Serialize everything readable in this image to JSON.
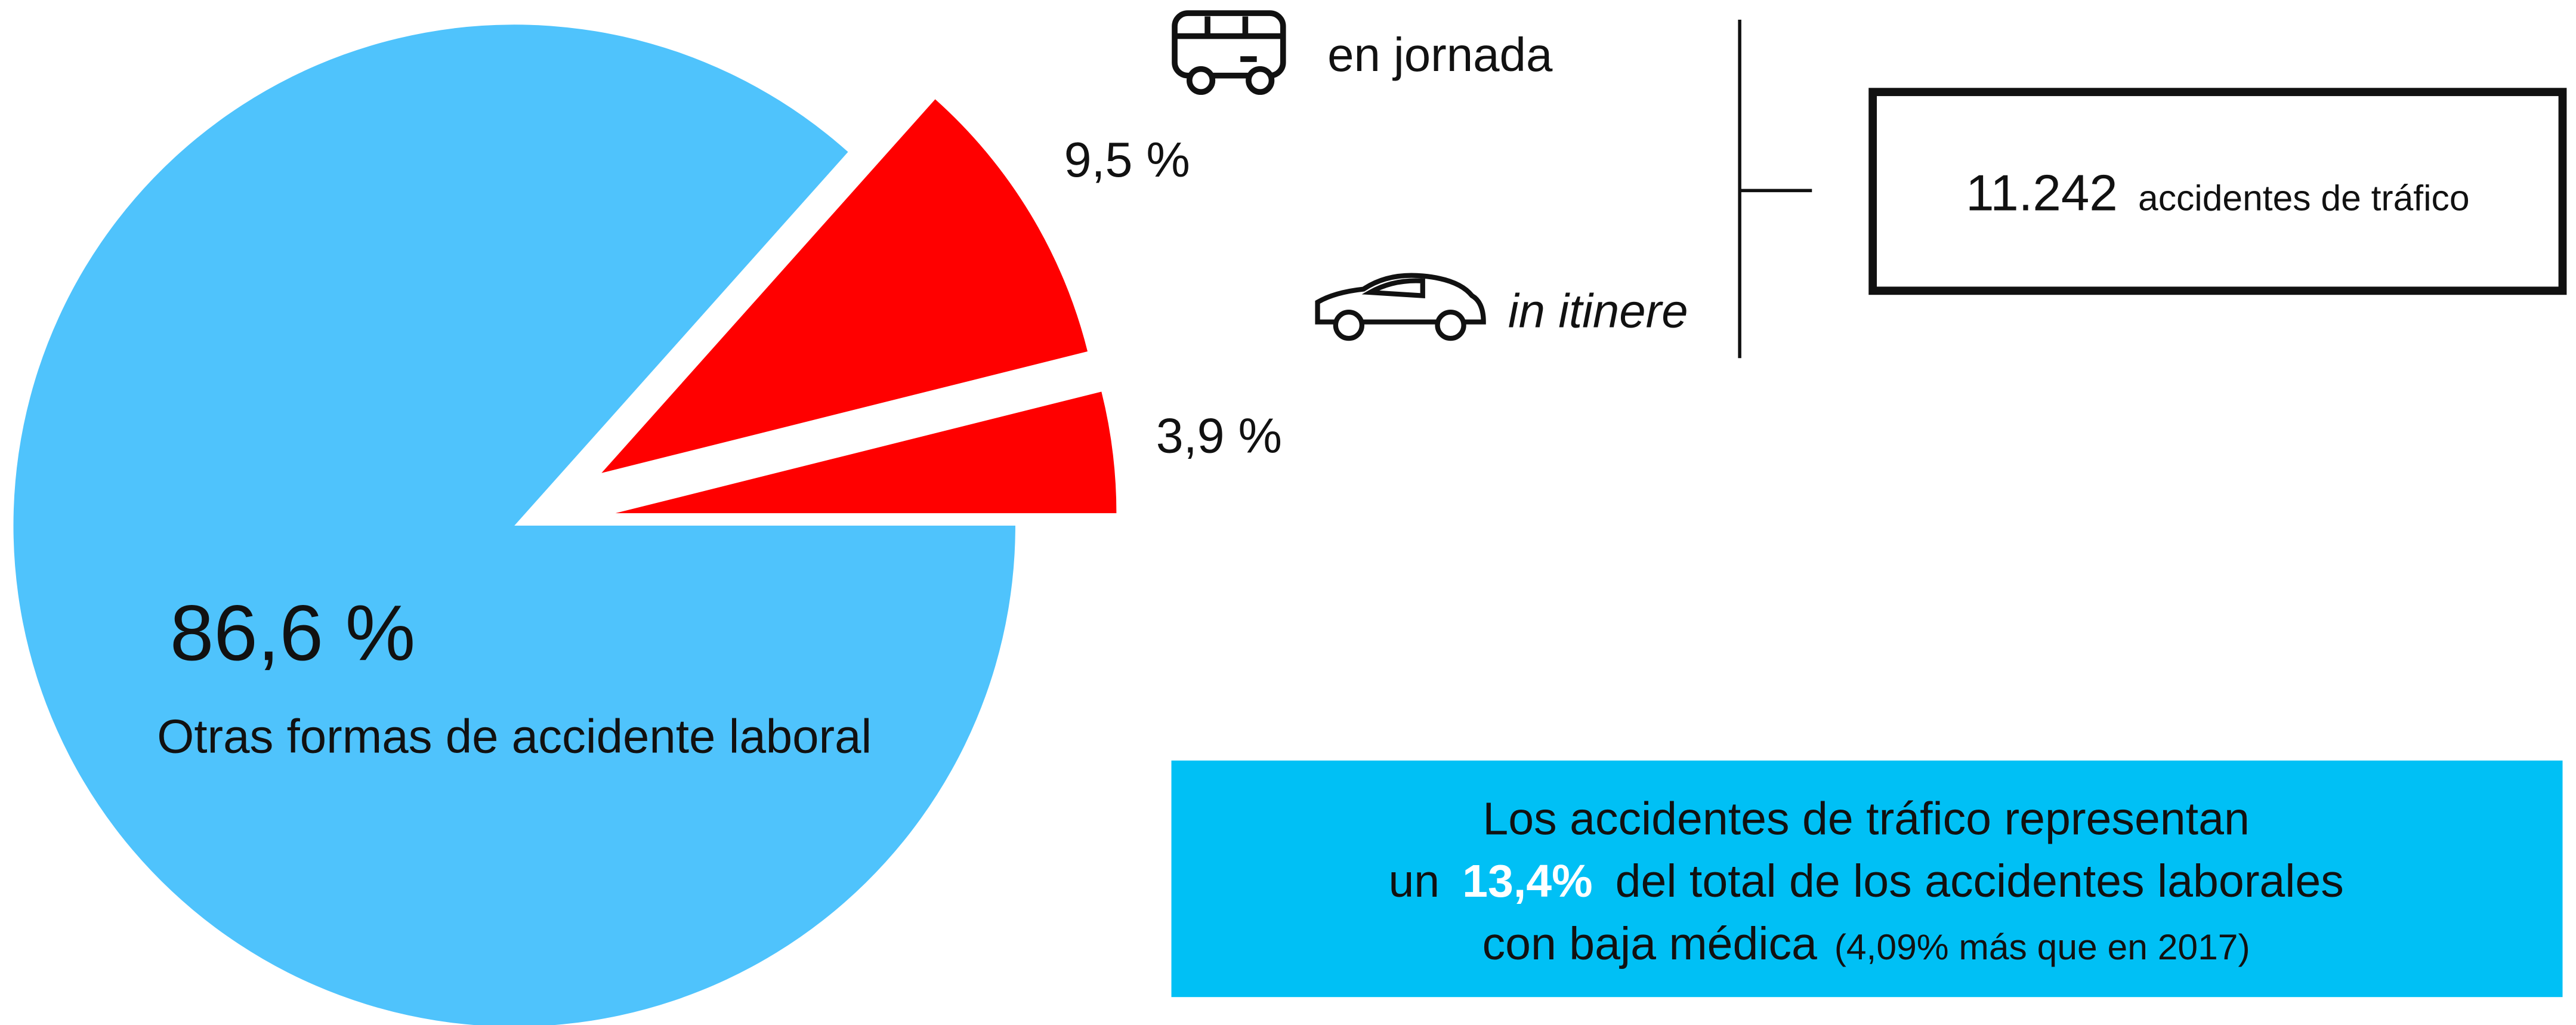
{
  "chart_data": {
    "type": "pie",
    "categories": [
      "Otras formas de accidente laboral",
      "en jornada",
      "in itinere"
    ],
    "values": [
      86.6,
      9.5,
      3.9
    ],
    "value_labels": [
      "86,6 %",
      "9,5 %",
      "3,9 %"
    ],
    "colors": [
      "#4fc3fc",
      "#ff0000",
      "#ff0000"
    ],
    "annotations": {
      "total_number": "11.242",
      "total_label": "accidentes de tráfico",
      "summary_line1": "Los accidentes de tráfico representan",
      "summary_line2_start": "un",
      "summary_highlight": "13,4%",
      "summary_line2_end": "del total de los accidentes laborales",
      "summary_line3": "con baja médica",
      "summary_note": "(4,09% más que en 2017)"
    }
  }
}
